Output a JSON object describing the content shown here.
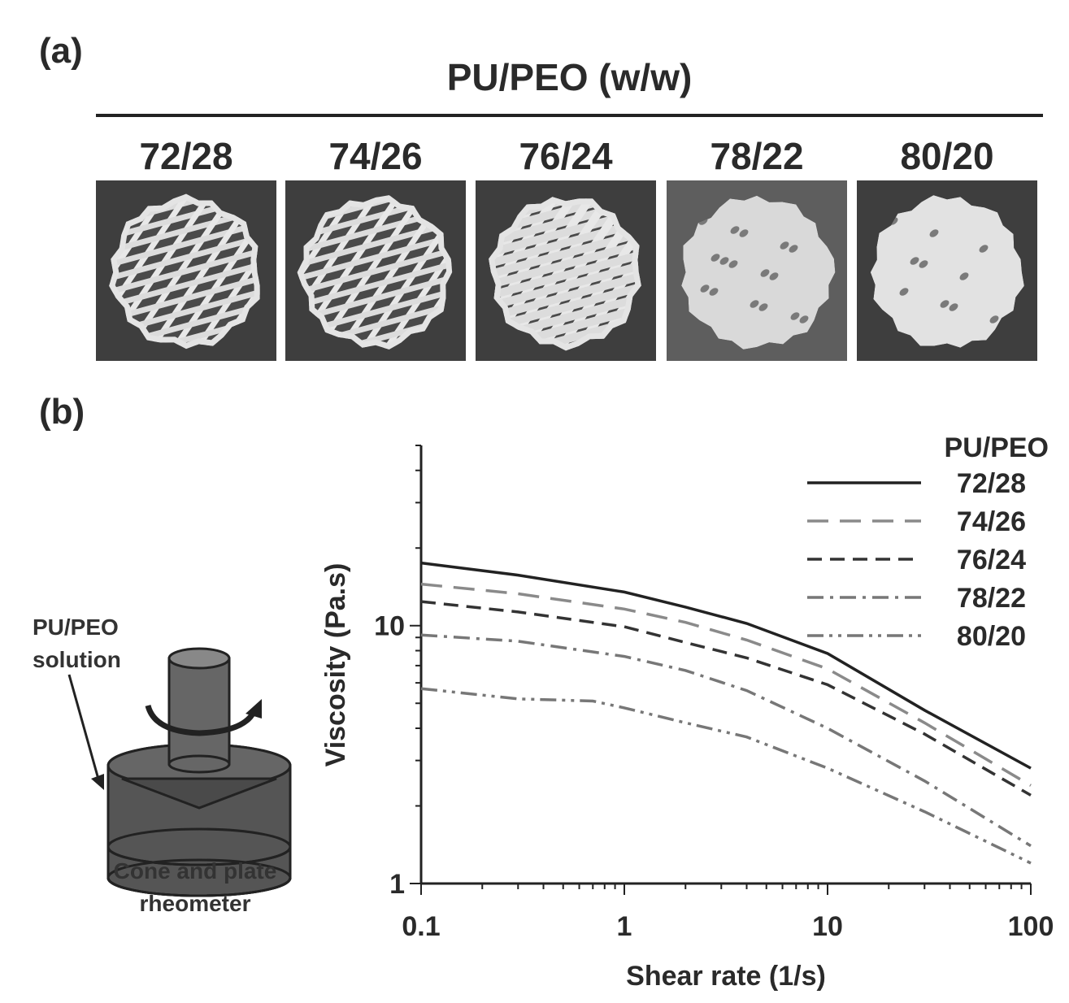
{
  "panel_a": {
    "label": "(a)",
    "group_title": "PU/PEO (w/w)",
    "samples": [
      {
        "ratio": "72/28",
        "structure": "open-lattice"
      },
      {
        "ratio": "74/26",
        "structure": "open-lattice"
      },
      {
        "ratio": "76/24",
        "structure": "dense-lattice"
      },
      {
        "ratio": "78/22",
        "structure": "filled-with-pores"
      },
      {
        "ratio": "80/20",
        "structure": "filled"
      }
    ]
  },
  "panel_b": {
    "label": "(b)",
    "diagram": {
      "callout": "PU/PEO solution",
      "caption_line1": "Cone and plate",
      "caption_line2": "rheometer"
    }
  },
  "chart_data": {
    "type": "line",
    "x_scale": "log",
    "y_scale": "log",
    "xlabel": "Shear rate (1/s)",
    "ylabel": "Viscosity (Pa.s)",
    "xlim": [
      0.1,
      100
    ],
    "ylim": [
      1,
      50
    ],
    "x_ticks": [
      "0.1",
      "1",
      "10",
      "100"
    ],
    "y_ticks": [
      "1",
      "10"
    ],
    "legend_title": "PU/PEO",
    "legend_position": "top-right",
    "series": [
      {
        "name": "72/28",
        "color": "#222222",
        "dash": "solid",
        "x": [
          0.1,
          0.3,
          1,
          2,
          4,
          10,
          30,
          100
        ],
        "y": [
          17.5,
          15.7,
          13.5,
          11.8,
          10.2,
          7.8,
          4.7,
          2.8
        ]
      },
      {
        "name": "74/26",
        "color": "#8a8a8a",
        "dash": "long-dash",
        "x": [
          0.1,
          0.3,
          1,
          2,
          4,
          10,
          30,
          100
        ],
        "y": [
          14.5,
          13.3,
          11.6,
          10.3,
          8.8,
          6.8,
          4.2,
          2.4
        ]
      },
      {
        "name": "76/24",
        "color": "#333333",
        "dash": "dash",
        "x": [
          0.1,
          0.3,
          1,
          2,
          4,
          10,
          30,
          100
        ],
        "y": [
          12.4,
          11.3,
          9.9,
          8.6,
          7.5,
          5.9,
          3.8,
          2.2
        ]
      },
      {
        "name": "78/22",
        "color": "#777777",
        "dash": "dash-dot",
        "x": [
          0.1,
          0.3,
          1,
          2,
          4,
          10,
          30,
          100
        ],
        "y": [
          9.2,
          8.7,
          7.6,
          6.7,
          5.6,
          4.0,
          2.5,
          1.4
        ]
      },
      {
        "name": "80/20",
        "color": "#777777",
        "dash": "dash-dot-dot",
        "x": [
          0.1,
          0.3,
          0.7,
          1,
          2,
          4,
          10,
          30,
          100
        ],
        "y": [
          5.7,
          5.2,
          5.1,
          4.8,
          4.2,
          3.7,
          2.8,
          1.9,
          1.2
        ]
      }
    ]
  }
}
